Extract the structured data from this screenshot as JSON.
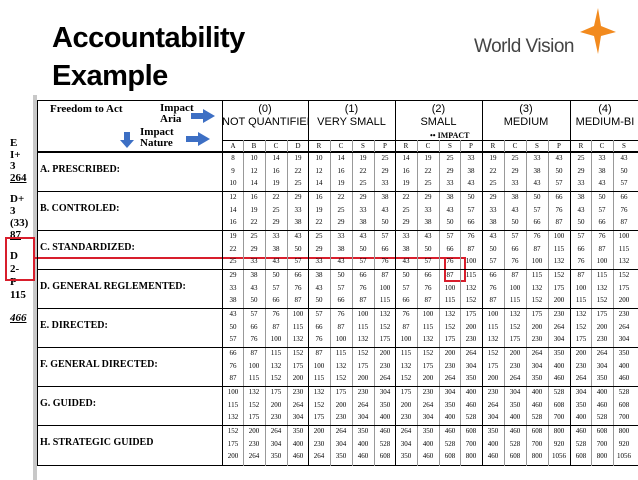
{
  "title": {
    "line1": "Accountability",
    "line2": "Example"
  },
  "logo": {
    "text": "World Vision"
  },
  "left_margin": [
    "E",
    "I+",
    "3",
    "264",
    "D+",
    "3",
    "(33)",
    "87",
    "D",
    "2-",
    "P",
    "115",
    "466"
  ],
  "header": {
    "freedom": "Freedom to Act",
    "impact_area": "Impact Aria",
    "impact_nature": "Impact Nature",
    "impact_label": "IMPACT",
    "impact_marker": "••",
    "groups": [
      {
        "num": "(0)",
        "name": "NOT QUANTIFIED"
      },
      {
        "num": "(1)",
        "name": "VERY SMALL"
      },
      {
        "num": "(2)",
        "name": "SMALL"
      },
      {
        "num": "(3)",
        "name": "MEDIUM"
      },
      {
        "num": "(4)",
        "name": "MEDIUM-BI"
      }
    ],
    "columns": [
      "A",
      "B",
      "C",
      "D",
      "R",
      "C",
      "S",
      "P",
      "R",
      "C",
      "S",
      "P",
      "R",
      "C",
      "S",
      "P",
      "R",
      "C",
      "S"
    ]
  },
  "rows": [
    {
      "label": "A. PRESCRIBED:",
      "lines": [
        [
          "8",
          "10",
          "14",
          "19",
          "10",
          "14",
          "19",
          "25",
          "14",
          "19",
          "25",
          "33",
          "19",
          "25",
          "33",
          "43",
          "25",
          "33",
          "43"
        ],
        [
          "9",
          "12",
          "16",
          "22",
          "12",
          "16",
          "22",
          "29",
          "16",
          "22",
          "29",
          "38",
          "22",
          "29",
          "38",
          "50",
          "29",
          "38",
          "50"
        ],
        [
          "10",
          "14",
          "19",
          "25",
          "14",
          "19",
          "25",
          "33",
          "19",
          "25",
          "33",
          "43",
          "25",
          "33",
          "43",
          "57",
          "33",
          "43",
          "57"
        ]
      ]
    },
    {
      "label": "B. CONTROLED:",
      "lines": [
        [
          "12",
          "16",
          "22",
          "29",
          "16",
          "22",
          "29",
          "38",
          "22",
          "29",
          "38",
          "50",
          "29",
          "38",
          "50",
          "66",
          "38",
          "50",
          "66"
        ],
        [
          "14",
          "19",
          "25",
          "33",
          "19",
          "25",
          "33",
          "43",
          "25",
          "33",
          "43",
          "57",
          "33",
          "43",
          "57",
          "76",
          "43",
          "57",
          "76"
        ],
        [
          "16",
          "22",
          "29",
          "38",
          "22",
          "29",
          "38",
          "50",
          "29",
          "38",
          "50",
          "66",
          "38",
          "50",
          "66",
          "87",
          "50",
          "66",
          "87"
        ]
      ]
    },
    {
      "label": "C. STANDARDIZED:",
      "lines": [
        [
          "19",
          "25",
          "33",
          "43",
          "25",
          "33",
          "43",
          "57",
          "33",
          "43",
          "57",
          "76",
          "43",
          "57",
          "76",
          "100",
          "57",
          "76",
          "100"
        ],
        [
          "22",
          "29",
          "38",
          "50",
          "29",
          "38",
          "50",
          "66",
          "38",
          "50",
          "66",
          "87",
          "50",
          "66",
          "87",
          "115",
          "66",
          "87",
          "115"
        ],
        [
          "25",
          "33",
          "43",
          "57",
          "33",
          "43",
          "57",
          "76",
          "43",
          "57",
          "76",
          "100",
          "57",
          "76",
          "100",
          "132",
          "76",
          "100",
          "132"
        ]
      ]
    },
    {
      "label": "D. GENERAL REGLEMENTED:",
      "lines": [
        [
          "29",
          "38",
          "50",
          "66",
          "38",
          "50",
          "66",
          "87",
          "50",
          "66",
          "87",
          "115",
          "66",
          "87",
          "115",
          "152",
          "87",
          "115",
          "152"
        ],
        [
          "33",
          "43",
          "57",
          "76",
          "43",
          "57",
          "76",
          "100",
          "57",
          "76",
          "100",
          "132",
          "76",
          "100",
          "132",
          "175",
          "100",
          "132",
          "175"
        ],
        [
          "38",
          "50",
          "66",
          "87",
          "50",
          "66",
          "87",
          "115",
          "66",
          "87",
          "115",
          "152",
          "87",
          "115",
          "152",
          "200",
          "115",
          "152",
          "200"
        ]
      ]
    },
    {
      "label": "E. DIRECTED:",
      "lines": [
        [
          "43",
          "57",
          "76",
          "100",
          "57",
          "76",
          "100",
          "132",
          "76",
          "100",
          "132",
          "175",
          "100",
          "132",
          "175",
          "230",
          "132",
          "175",
          "230"
        ],
        [
          "50",
          "66",
          "87",
          "115",
          "66",
          "87",
          "115",
          "152",
          "87",
          "115",
          "152",
          "200",
          "115",
          "152",
          "200",
          "264",
          "152",
          "200",
          "264"
        ],
        [
          "57",
          "76",
          "100",
          "132",
          "76",
          "100",
          "132",
          "175",
          "100",
          "132",
          "175",
          "230",
          "132",
          "175",
          "230",
          "304",
          "175",
          "230",
          "304"
        ]
      ]
    },
    {
      "label": "F. GENERAL DIRECTED:",
      "lines": [
        [
          "66",
          "87",
          "115",
          "152",
          "87",
          "115",
          "152",
          "200",
          "115",
          "152",
          "200",
          "264",
          "152",
          "200",
          "264",
          "350",
          "200",
          "264",
          "350"
        ],
        [
          "76",
          "100",
          "132",
          "175",
          "100",
          "132",
          "175",
          "230",
          "132",
          "175",
          "230",
          "304",
          "175",
          "230",
          "304",
          "400",
          "230",
          "304",
          "400"
        ],
        [
          "87",
          "115",
          "152",
          "200",
          "115",
          "152",
          "200",
          "264",
          "152",
          "200",
          "264",
          "350",
          "200",
          "264",
          "350",
          "460",
          "264",
          "350",
          "460"
        ]
      ]
    },
    {
      "label": "G. GUIDED:",
      "lines": [
        [
          "100",
          "132",
          "175",
          "230",
          "132",
          "175",
          "230",
          "304",
          "175",
          "230",
          "304",
          "400",
          "230",
          "304",
          "400",
          "528",
          "304",
          "400",
          "528"
        ],
        [
          "115",
          "152",
          "200",
          "264",
          "152",
          "200",
          "264",
          "350",
          "200",
          "264",
          "350",
          "460",
          "264",
          "350",
          "460",
          "608",
          "350",
          "460",
          "608"
        ],
        [
          "132",
          "175",
          "230",
          "304",
          "175",
          "230",
          "304",
          "400",
          "230",
          "304",
          "400",
          "528",
          "304",
          "400",
          "528",
          "700",
          "400",
          "528",
          "700"
        ]
      ]
    },
    {
      "label": "H. STRATEGIC GUIDED",
      "lines": [
        [
          "152",
          "200",
          "264",
          "350",
          "200",
          "264",
          "350",
          "460",
          "264",
          "350",
          "460",
          "608",
          "350",
          "460",
          "608",
          "800",
          "460",
          "608",
          "800"
        ],
        [
          "175",
          "230",
          "304",
          "400",
          "230",
          "304",
          "400",
          "528",
          "304",
          "400",
          "528",
          "700",
          "400",
          "528",
          "700",
          "920",
          "528",
          "700",
          "920"
        ],
        [
          "200",
          "264",
          "350",
          "460",
          "264",
          "350",
          "460",
          "608",
          "350",
          "460",
          "608",
          "800",
          "460",
          "608",
          "800",
          "1056",
          "608",
          "800",
          "1056"
        ]
      ]
    }
  ]
}
